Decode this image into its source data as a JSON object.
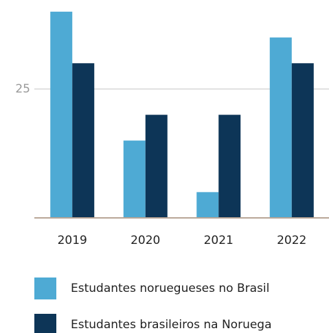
{
  "chart_data": {
    "type": "bar",
    "categories": [
      "2019",
      "2020",
      "2021",
      "2022"
    ],
    "series": [
      {
        "name": "Estudantes noruegueses no Brasil",
        "color": "#4eaad4",
        "values": [
          40,
          15,
          5,
          35
        ]
      },
      {
        "name": "Estudantes brasileiros na Noruega",
        "color": "#0d3557",
        "values": [
          30,
          20,
          20,
          30
        ]
      }
    ],
    "ylim": [
      0,
      42
    ],
    "yticks": [
      25
    ],
    "grid": true,
    "legend": "bottom"
  }
}
